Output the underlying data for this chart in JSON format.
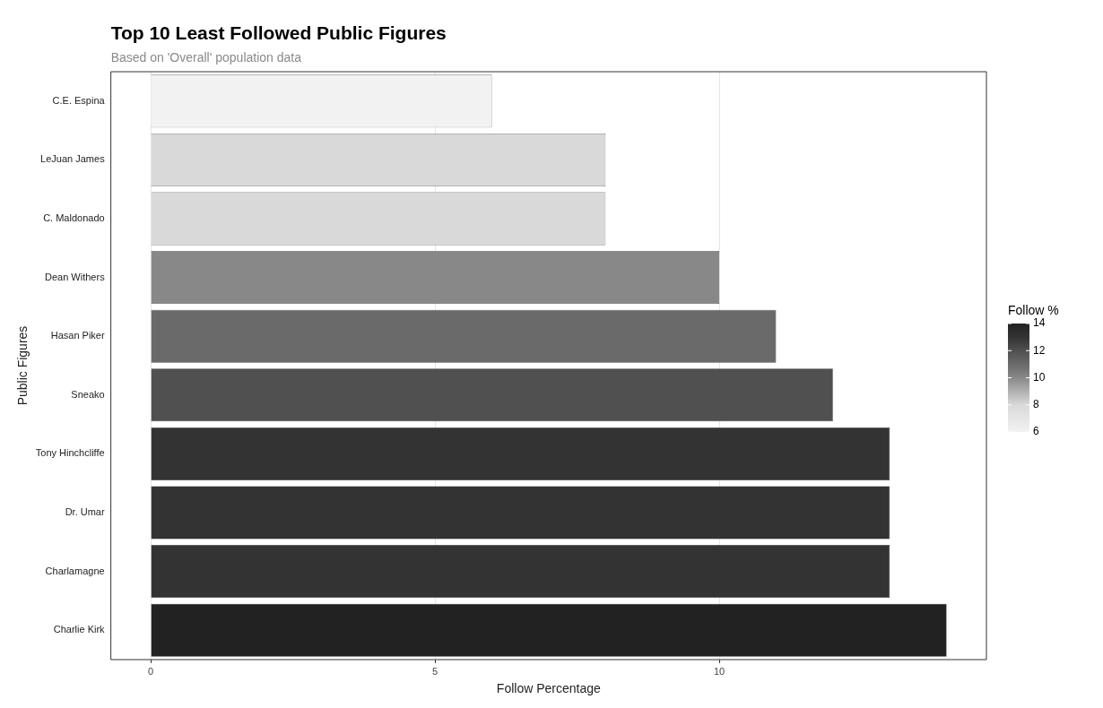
{
  "chart_data": {
    "type": "bar",
    "orientation": "horizontal",
    "title": "Top 10 Least Followed Public Figures",
    "subtitle": "Based on 'Overall' population data",
    "xlabel": "Follow Percentage",
    "ylabel": "Public Figures",
    "clabel": "Follow %",
    "categories": [
      "C.E. Espina",
      "LeJuan James",
      "C. Maldonado",
      "Dean Withers",
      "Hasan Piker",
      "Sneako",
      "Tony Hinchcliffe",
      "Dr. Umar",
      "Charlamagne",
      "Charlie Kirk"
    ],
    "values": [
      6,
      8,
      8,
      10,
      11,
      12,
      13,
      13,
      13,
      14
    ],
    "colors": [
      "#f2f2f2",
      "#d9d9d9",
      "#d9d9d9",
      "#888888",
      "#6a6a6a",
      "#505050",
      "#333333",
      "#333333",
      "#333333",
      "#222222"
    ],
    "xlim": [
      -0.7,
      14.7
    ],
    "xticks": [
      0,
      5,
      10
    ],
    "clim": [
      6,
      14
    ],
    "cticks": [
      6,
      8,
      10,
      12,
      14
    ],
    "grid": "x"
  }
}
